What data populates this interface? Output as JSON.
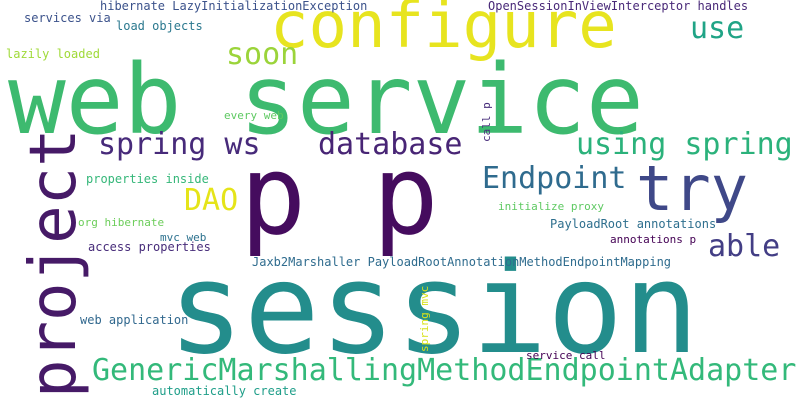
{
  "word_cloud": {
    "words": [
      {
        "text": "web service",
        "color": "#3dba6f"
      },
      {
        "text": "session",
        "color": "#238d8c"
      },
      {
        "text": "p p",
        "color": "#450c5e"
      },
      {
        "text": "configure",
        "color": "#e7e41f"
      },
      {
        "text": "try",
        "color": "#3f4888"
      },
      {
        "text": "project",
        "color": "#461a67"
      },
      {
        "text": "GenericMarshallingMethodEndpointAdapter",
        "color": "#33b97a"
      },
      {
        "text": "spring ws",
        "color": "#472a7a"
      },
      {
        "text": "database",
        "color": "#482575"
      },
      {
        "text": "using spring",
        "color": "#2bb27b"
      },
      {
        "text": "Endpoint",
        "color": "#2f6b8e"
      },
      {
        "text": "soon",
        "color": "#9bd43a"
      },
      {
        "text": "use",
        "color": "#20a486"
      },
      {
        "text": "able",
        "color": "#433e85"
      },
      {
        "text": "DAO",
        "color": "#e5e419"
      },
      {
        "text": "hibernate LazyInitializationException",
        "color": "#3b528b"
      },
      {
        "text": "OpenSessionInViewInterceptor handles",
        "color": "#482878"
      },
      {
        "text": "services via",
        "color": "#3b528b"
      },
      {
        "text": "load objects",
        "color": "#2a788e"
      },
      {
        "text": "lazily loaded",
        "color": "#a0da39"
      },
      {
        "text": "every web",
        "color": "#5ec962"
      },
      {
        "text": "properties inside",
        "color": "#35b779"
      },
      {
        "text": "org hibernate",
        "color": "#6ccd5a"
      },
      {
        "text": "mvc web",
        "color": "#2c718e"
      },
      {
        "text": "access properties",
        "color": "#472c7a"
      },
      {
        "text": "initialize proxy",
        "color": "#5ec962"
      },
      {
        "text": "PayloadRoot annotations",
        "color": "#2e6f8e"
      },
      {
        "text": "annotations p",
        "color": "#440154"
      },
      {
        "text": "Jaxb2Marshaller PayloadRootAnnotationMethodEndpointMapping",
        "color": "#2f6c8e"
      },
      {
        "text": "web application",
        "color": "#31688e"
      },
      {
        "text": "service call",
        "color": "#440154"
      },
      {
        "text": "automatically create",
        "color": "#1f9e89"
      },
      {
        "text": "call p",
        "color": "#472d7b"
      },
      {
        "text": "spring mvc",
        "color": "#d8e219"
      }
    ]
  }
}
